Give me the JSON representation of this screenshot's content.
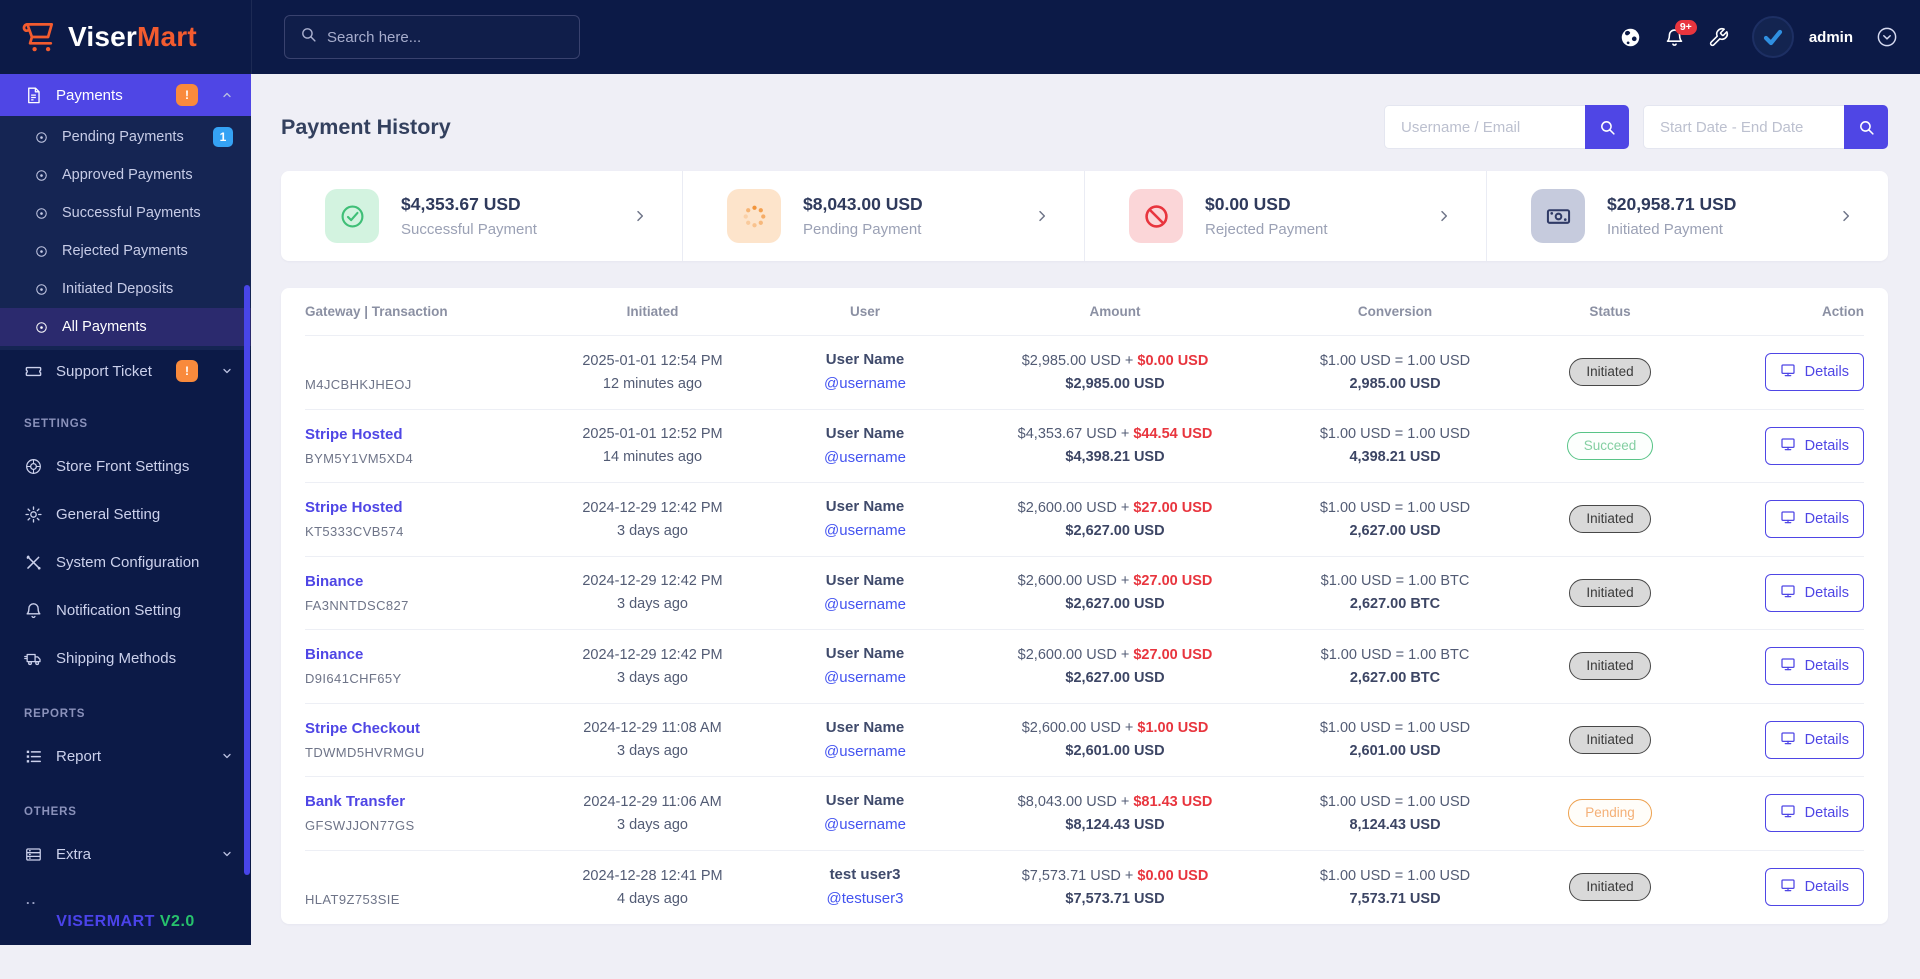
{
  "brand": {
    "name_primary": "Viser",
    "name_secondary": "Mart",
    "collapsed_dots": "..",
    "footer_brand": "VISERMART",
    "footer_version": "V2.0",
    "logo_color": "#f35b2f"
  },
  "colors": {
    "accent": "#4f46e5",
    "navy": "#0c1a47",
    "success_green": "#3fbf77",
    "pending_orange": "#f2943a",
    "rejected_red": "#e8353e",
    "badge_orange": "#f98a3c",
    "badge_blue": "#35a2f4",
    "version_green": "#27c26c"
  },
  "topbar": {
    "search_placeholder": "Search here...",
    "notification_badge": "9+",
    "username": "admin"
  },
  "sidebar": {
    "menu": [
      {
        "label": "Payments",
        "icon": "invoice",
        "badge": "!",
        "badge_style": "orange",
        "active": true,
        "expanded": true,
        "children": [
          {
            "label": "Pending Payments",
            "badge": "1",
            "badge_style": "blue"
          },
          {
            "label": "Approved Payments"
          },
          {
            "label": "Successful Payments"
          },
          {
            "label": "Rejected Payments"
          },
          {
            "label": "Initiated Deposits"
          },
          {
            "label": "All Payments",
            "active": true
          }
        ]
      },
      {
        "label": "Support Ticket",
        "icon": "ticket",
        "badge": "!",
        "badge_style": "orange",
        "expandable": true
      }
    ],
    "groups": [
      {
        "heading": "SETTINGS",
        "items": [
          {
            "label": "Store Front Settings",
            "icon": "storefront"
          },
          {
            "label": "General Setting",
            "icon": "gear"
          },
          {
            "label": "System Configuration",
            "icon": "tools"
          },
          {
            "label": "Notification Setting",
            "icon": "bell"
          },
          {
            "label": "Shipping Methods",
            "icon": "truck"
          }
        ]
      },
      {
        "heading": "REPORTS",
        "items": [
          {
            "label": "Report",
            "icon": "report",
            "expandable": true
          }
        ]
      },
      {
        "heading": "OTHERS",
        "items": [
          {
            "label": "Extra",
            "icon": "extra",
            "expandable": true
          }
        ]
      }
    ]
  },
  "page": {
    "title": "Payment History",
    "filters": [
      {
        "placeholder": "Username / Email"
      },
      {
        "placeholder": "Start Date - End Date"
      }
    ]
  },
  "summary_cards": [
    {
      "amount": "$4,353.67 USD",
      "label": "Successful Payment",
      "icon": "check-circle",
      "theme": "green"
    },
    {
      "amount": "$8,043.00 USD",
      "label": "Pending Payment",
      "icon": "spinner",
      "theme": "orange"
    },
    {
      "amount": "$0.00 USD",
      "label": "Rejected Payment",
      "icon": "ban",
      "theme": "red"
    },
    {
      "amount": "$20,958.71 USD",
      "label": "Initiated Payment",
      "icon": "cash",
      "theme": "slate"
    }
  ],
  "table": {
    "headers": [
      "Gateway | Transaction",
      "Initiated",
      "User",
      "Amount",
      "Conversion",
      "Status",
      "Action"
    ],
    "details_label": "Details",
    "rows": [
      {
        "gateway": "",
        "trx": "M4JCBHKJHEOJ",
        "date": "2025-01-01 12:54 PM",
        "ago": "12 minutes ago",
        "user_name": "User Name",
        "user_handle": "@username",
        "amount_base": "$2,985.00 USD",
        "amount_fee": "$0.00 USD",
        "amount_total": "$2,985.00 USD",
        "rate": "$1.00 USD = 1.00 USD",
        "converted": "2,985.00 USD",
        "status": "Initiated",
        "status_type": "initiated"
      },
      {
        "gateway": "Stripe Hosted",
        "trx": "BYM5Y1VM5XD4",
        "date": "2025-01-01 12:52 PM",
        "ago": "14 minutes ago",
        "user_name": "User Name",
        "user_handle": "@username",
        "amount_base": "$4,353.67 USD",
        "amount_fee": "$44.54 USD",
        "amount_total": "$4,398.21 USD",
        "rate": "$1.00 USD = 1.00 USD",
        "converted": "4,398.21 USD",
        "status": "Succeed",
        "status_type": "succeed"
      },
      {
        "gateway": "Stripe Hosted",
        "trx": "KT5333CVB574",
        "date": "2024-12-29 12:42 PM",
        "ago": "3 days ago",
        "user_name": "User Name",
        "user_handle": "@username",
        "amount_base": "$2,600.00 USD",
        "amount_fee": "$27.00 USD",
        "amount_total": "$2,627.00 USD",
        "rate": "$1.00 USD = 1.00 USD",
        "converted": "2,627.00 USD",
        "status": "Initiated",
        "status_type": "initiated"
      },
      {
        "gateway": "Binance",
        "trx": "FA3NNTDSC827",
        "date": "2024-12-29 12:42 PM",
        "ago": "3 days ago",
        "user_name": "User Name",
        "user_handle": "@username",
        "amount_base": "$2,600.00 USD",
        "amount_fee": "$27.00 USD",
        "amount_total": "$2,627.00 USD",
        "rate": "$1.00 USD = 1.00 BTC",
        "converted": "2,627.00 BTC",
        "status": "Initiated",
        "status_type": "initiated"
      },
      {
        "gateway": "Binance",
        "trx": "D9I641CHF65Y",
        "date": "2024-12-29 12:42 PM",
        "ago": "3 days ago",
        "user_name": "User Name",
        "user_handle": "@username",
        "amount_base": "$2,600.00 USD",
        "amount_fee": "$27.00 USD",
        "amount_total": "$2,627.00 USD",
        "rate": "$1.00 USD = 1.00 BTC",
        "converted": "2,627.00 BTC",
        "status": "Initiated",
        "status_type": "initiated"
      },
      {
        "gateway": "Stripe Checkout",
        "trx": "TDWMD5HVRMGU",
        "date": "2024-12-29 11:08 AM",
        "ago": "3 days ago",
        "user_name": "User Name",
        "user_handle": "@username",
        "amount_base": "$2,600.00 USD",
        "amount_fee": "$1.00 USD",
        "amount_total": "$2,601.00 USD",
        "rate": "$1.00 USD = 1.00 USD",
        "converted": "2,601.00 USD",
        "status": "Initiated",
        "status_type": "initiated"
      },
      {
        "gateway": "Bank Transfer",
        "trx": "GFSWJJON77GS",
        "date": "2024-12-29 11:06 AM",
        "ago": "3 days ago",
        "user_name": "User Name",
        "user_handle": "@username",
        "amount_base": "$8,043.00 USD",
        "amount_fee": "$81.43 USD",
        "amount_total": "$8,124.43 USD",
        "rate": "$1.00 USD = 1.00 USD",
        "converted": "8,124.43 USD",
        "status": "Pending",
        "status_type": "pending"
      },
      {
        "gateway": "",
        "trx": "HLAT9Z753SIE",
        "date": "2024-12-28 12:41 PM",
        "ago": "4 days ago",
        "user_name": "test user3",
        "user_handle": "@testuser3",
        "amount_base": "$7,573.71 USD",
        "amount_fee": "$0.00 USD",
        "amount_total": "$7,573.71 USD",
        "rate": "$1.00 USD = 1.00 USD",
        "converted": "7,573.71 USD",
        "status": "Initiated",
        "status_type": "initiated"
      }
    ]
  }
}
